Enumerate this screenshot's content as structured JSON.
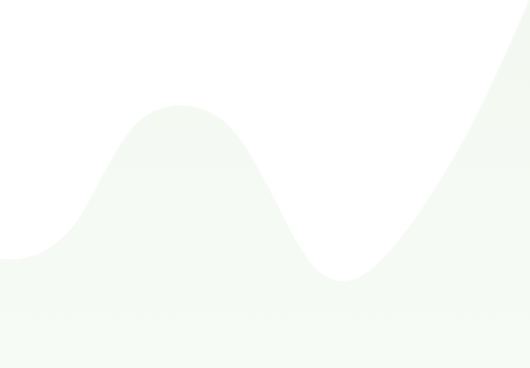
{
  "background": {
    "page_color": "#ffffff",
    "wave_color": "#f3f8f1",
    "wave_edge_color": "#f7fbf6"
  }
}
